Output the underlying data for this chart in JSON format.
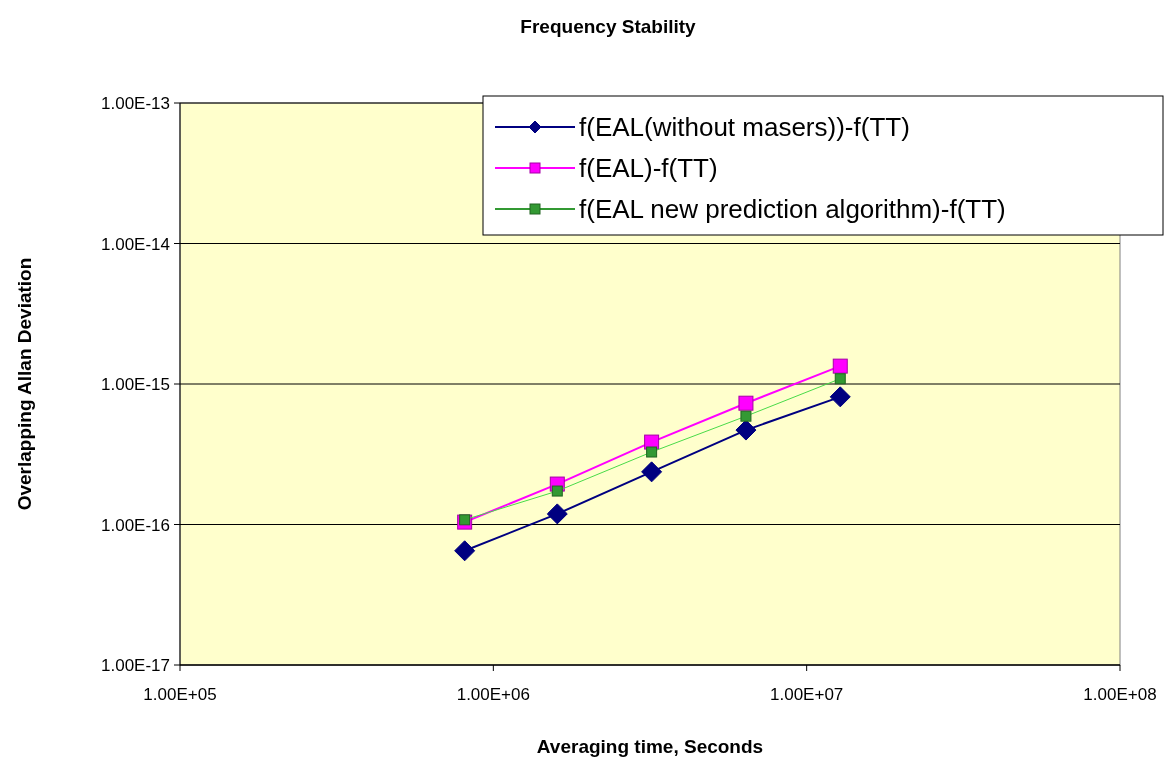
{
  "chart_data": {
    "type": "line",
    "title": "Frequency Stability",
    "xlabel": "Averaging time, Seconds",
    "ylabel": "Overlapping Allan Deviation",
    "log": "xy",
    "grid": "y",
    "legend": "top right",
    "xlim": [
      100000.0,
      100000000.0
    ],
    "xticks": [
      {
        "value": 100000.0,
        "label": "1.00E+05"
      },
      {
        "value": 1000000.0,
        "label": "1.00E+06"
      },
      {
        "value": 10000000.0,
        "label": "1.00E+07"
      },
      {
        "value": 100000000.0,
        "label": "1.00E+08"
      }
    ],
    "ylim": [
      1e-17,
      1e-13
    ],
    "yticks": [
      {
        "value": 1e-17,
        "label": "1.00E-17"
      },
      {
        "value": 1e-16,
        "label": "1.00E-16"
      },
      {
        "value": 1e-15,
        "label": "1.00E-15"
      },
      {
        "value": 1e-14,
        "label": "1.00E-14"
      },
      {
        "value": 1e-13,
        "label": "1.00E-13"
      }
    ],
    "x": [
      810000,
      1600000,
      3200000,
      6400000,
      12800000
    ],
    "series": [
      {
        "name": "f(EAL(without masers))-f(TT)",
        "color": "#000080",
        "marker": "diamond",
        "values": [
          6.5e-17,
          1.19e-16,
          2.37e-16,
          4.7e-16,
          8.1e-16
        ]
      },
      {
        "name": "f(EAL)-f(TT)",
        "color": "#ff00ff",
        "marker": "square",
        "values": [
          1.04e-16,
          1.94e-16,
          3.86e-16,
          7.3e-16,
          1.34e-15
        ]
      },
      {
        "name": "f(EAL new prediction algorithm)-f(TT)",
        "color": "#339933",
        "marker": "square",
        "values": [
          1.08e-16,
          1.73e-16,
          3.28e-16,
          5.9e-16,
          1.09e-15
        ]
      }
    ]
  }
}
